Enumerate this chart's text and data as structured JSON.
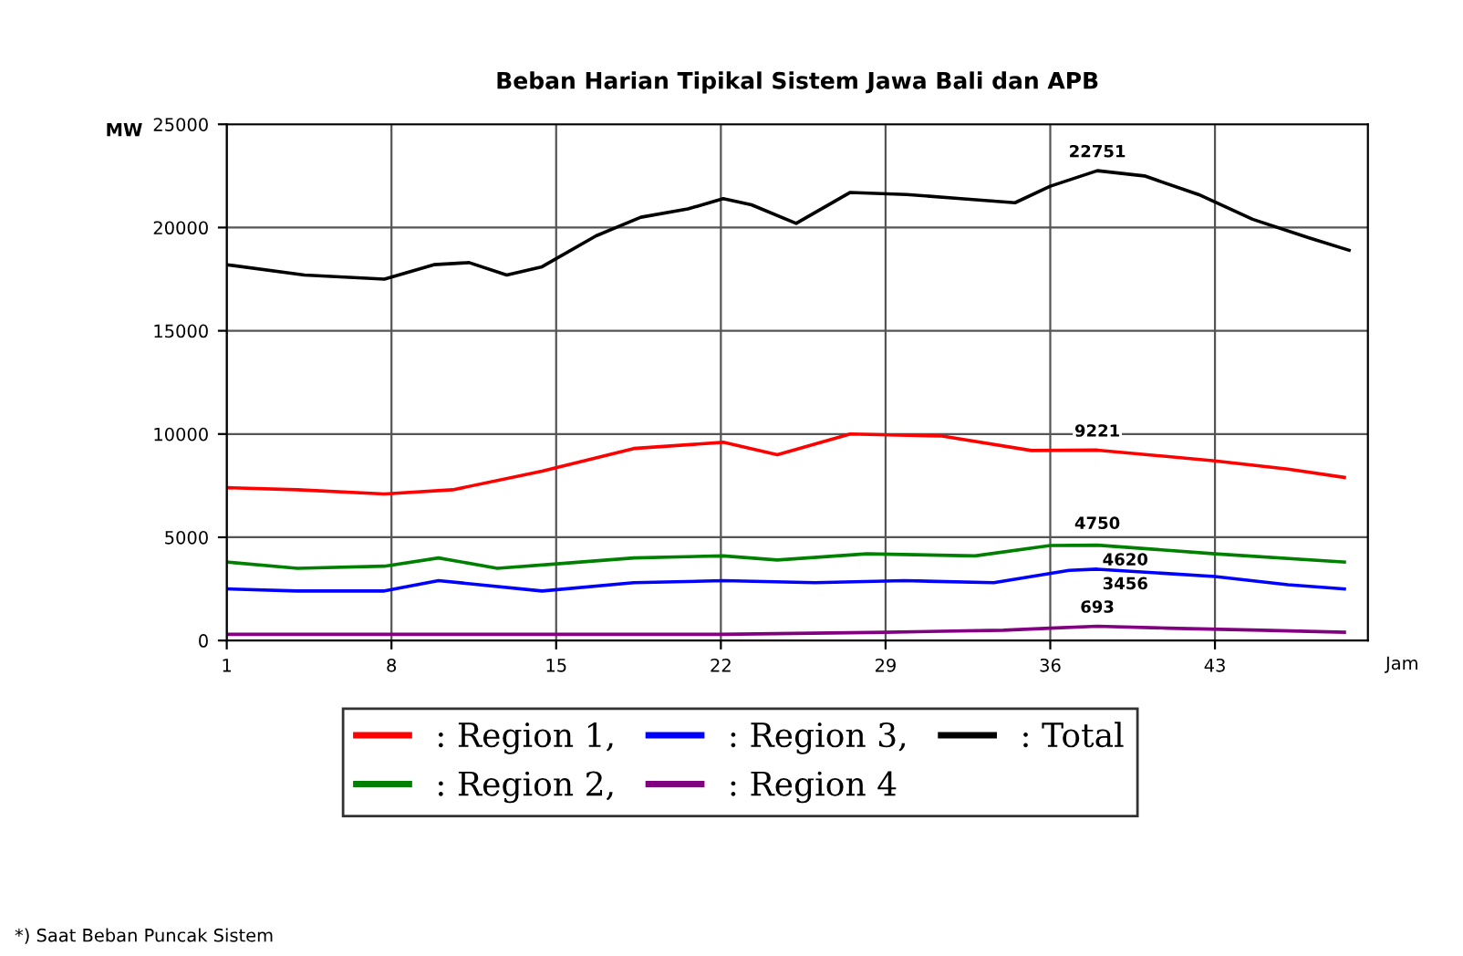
{
  "chart_data": {
    "type": "line",
    "title": "Beban Harian Tipikal Sistem Jawa Bali dan APB",
    "ylabel": "MW",
    "xlabel": "Jam",
    "xlim": [
      1,
      49.5
    ],
    "xticks": [
      1,
      8,
      15,
      22,
      29,
      36,
      43
    ],
    "ylim": [
      0,
      25000
    ],
    "yticks": [
      0,
      5000,
      10000,
      15000,
      20000,
      25000
    ],
    "grid": true,
    "legend": "bottom",
    "marker": "none",
    "line_style": "solid",
    "series": [
      {
        "name": ": Region 1,",
        "color": "#ff0000",
        "x": [
          1,
          4,
          7.7,
          10.6,
          14.4,
          18.3,
          22.1,
          24.4,
          27.5,
          31.4,
          35.2,
          38,
          43,
          46.1,
          48.5
        ],
        "values": [
          7400,
          7300,
          7100,
          7300,
          8200,
          9300,
          9600,
          9000,
          10000,
          9900,
          9200,
          9221,
          8700,
          8300,
          7900
        ],
        "value_labels": [
          null,
          null,
          null,
          null,
          null,
          null,
          null,
          null,
          null,
          null,
          null,
          "9221",
          null,
          null,
          null
        ]
      },
      {
        "name": ": Region 2,",
        "color": "#008000",
        "x": [
          1,
          4,
          7.7,
          10,
          12.5,
          14.9,
          18.3,
          22.1,
          24.4,
          28.2,
          32.8,
          36,
          38,
          43,
          48.5
        ],
        "values": [
          3800,
          3500,
          3600,
          4000,
          3500,
          3700,
          4000,
          4100,
          3900,
          4200,
          4100,
          4600,
          4620,
          4200,
          3800
        ],
        "value_labels": [
          null,
          null,
          null,
          null,
          null,
          null,
          null,
          null,
          null,
          null,
          null,
          null,
          "4620",
          null,
          null
        ]
      },
      {
        "name": ": Region 3,",
        "color": "#0000ff",
        "x": [
          1,
          4,
          7.7,
          10,
          14.4,
          18.3,
          22.1,
          26,
          29.8,
          33.6,
          36.8,
          38,
          43,
          46.1,
          48.5
        ],
        "values": [
          2500,
          2400,
          2400,
          2900,
          2400,
          2800,
          2900,
          2800,
          2900,
          2800,
          3400,
          3456,
          3100,
          2700,
          2500
        ],
        "value_labels": [
          null,
          null,
          null,
          null,
          null,
          null,
          null,
          null,
          null,
          null,
          null,
          "3456",
          null,
          null,
          null
        ]
      },
      {
        "name": ": Region 4",
        "color": "#800080",
        "x": [
          1,
          8,
          15,
          22,
          29,
          34,
          36,
          38,
          41,
          45,
          48.5
        ],
        "values": [
          300,
          300,
          300,
          300,
          400,
          500,
          600,
          693,
          600,
          500,
          400
        ],
        "value_labels": [
          null,
          null,
          null,
          null,
          null,
          null,
          null,
          "693",
          null,
          null,
          null
        ]
      },
      {
        "name": ": Total",
        "color": "#000000",
        "x": [
          1,
          4.3,
          7.7,
          9.8,
          11.3,
          12.9,
          14.4,
          16.7,
          18.6,
          20.6,
          22.1,
          23.3,
          25.2,
          27.5,
          29.9,
          32.2,
          34.5,
          36,
          38,
          40,
          42.3,
          44.6,
          47,
          48.7
        ],
        "values": [
          18200,
          17700,
          17500,
          18200,
          18300,
          17700,
          18100,
          19600,
          20500,
          20900,
          21400,
          21100,
          20200,
          21700,
          21600,
          21400,
          21200,
          22000,
          22751,
          22500,
          21600,
          20400,
          19500,
          18900
        ],
        "value_labels": [
          null,
          null,
          null,
          null,
          null,
          null,
          null,
          null,
          null,
          null,
          null,
          null,
          null,
          null,
          null,
          null,
          null,
          null,
          "22751",
          null,
          null,
          null,
          null,
          null
        ]
      }
    ],
    "annotations": [
      {
        "text": "4750",
        "x": 38,
        "y": 4750
      },
      "*) Saat Beban Puncak Sistem"
    ]
  }
}
